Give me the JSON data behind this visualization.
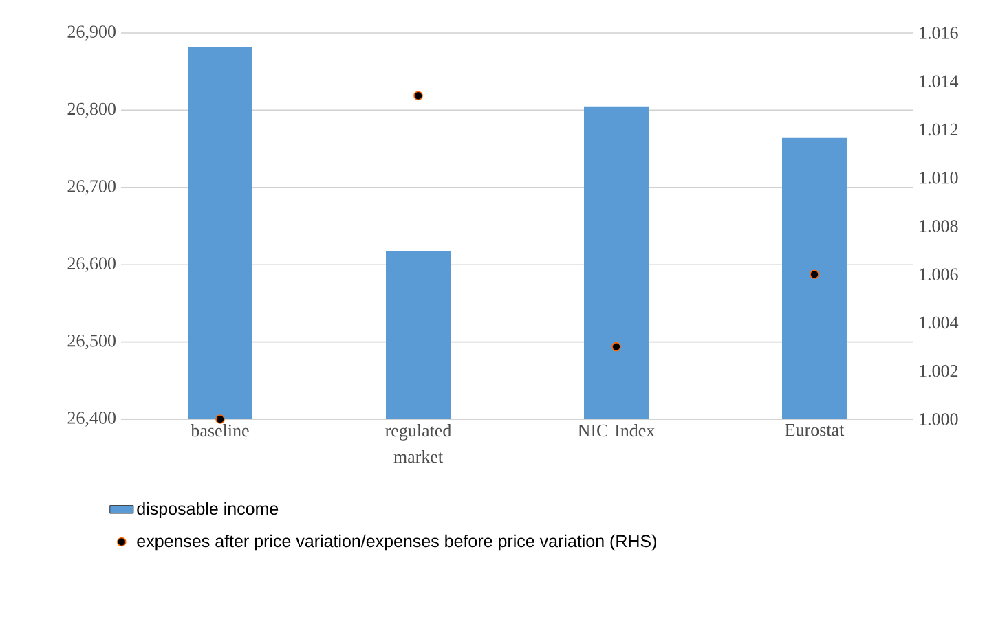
{
  "chart_data": {
    "type": "bar",
    "categories": [
      "baseline",
      "regulated market",
      "NIC Index",
      "Eurostat"
    ],
    "series": [
      {
        "name": "disposable income",
        "color": "#5b9bd5",
        "values": [
          26882,
          26618,
          26805,
          26764
        ]
      },
      {
        "name": "expenses after price variation/expenses before price variation (RHS)",
        "type": "scatter",
        "axis": "y2",
        "color": "#000000",
        "values": [
          1.0,
          1.0134,
          1.003,
          1.006
        ]
      }
    ],
    "ylim": [
      26400,
      26900
    ],
    "yticks": [
      {
        "value": 26400,
        "label": "26,400"
      },
      {
        "value": 26500,
        "label": "26,500"
      },
      {
        "value": 26600,
        "label": "26,600"
      },
      {
        "value": 26700,
        "label": "26,700"
      },
      {
        "value": 26800,
        "label": "26,800"
      },
      {
        "value": 26900,
        "label": "26,900"
      }
    ],
    "y2lim": [
      1.0,
      1.016
    ],
    "y2ticks": [
      {
        "value": 1.0,
        "label": "1.000"
      },
      {
        "value": 1.002,
        "label": "1.002"
      },
      {
        "value": 1.004,
        "label": "1.004"
      },
      {
        "value": 1.006,
        "label": "1.006"
      },
      {
        "value": 1.008,
        "label": "1.008"
      },
      {
        "value": 1.01,
        "label": "1.010"
      },
      {
        "value": 1.012,
        "label": "1.012"
      },
      {
        "value": 1.014,
        "label": "1.014"
      },
      {
        "value": 1.016,
        "label": "1.016"
      }
    ],
    "grid": "y",
    "legend": "bottom",
    "marker": "circle"
  }
}
